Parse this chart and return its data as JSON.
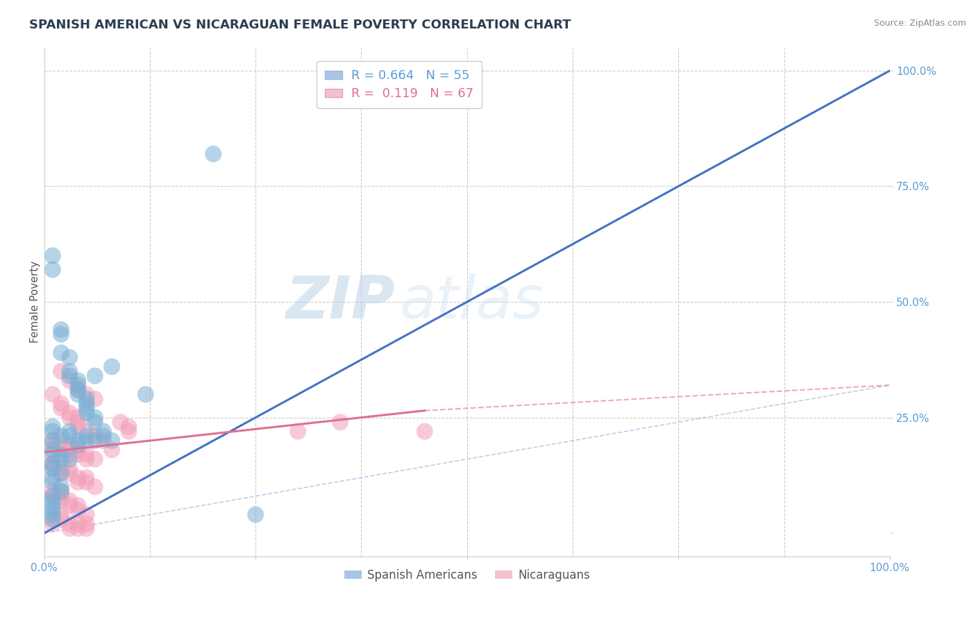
{
  "title": "SPANISH AMERICAN VS NICARAGUAN FEMALE POVERTY CORRELATION CHART",
  "source": "Source: ZipAtlas.com",
  "xlabel": "",
  "ylabel": "Female Poverty",
  "xlim": [
    0,
    1
  ],
  "ylim": [
    -0.05,
    1.05
  ],
  "x_ticks": [
    0.0,
    0.25,
    0.5,
    0.75,
    1.0
  ],
  "x_tick_labels": [
    "0.0%",
    "",
    "",
    "",
    "100.0%"
  ],
  "y_ticks": [
    0.0,
    0.25,
    0.5,
    0.75,
    1.0
  ],
  "y_tick_labels": [
    "",
    "25.0%",
    "50.0%",
    "75.0%",
    "100.0%"
  ],
  "legend_entries": [
    {
      "label": "R = 0.664   N = 55",
      "color": "#aac4e8"
    },
    {
      "label": "R =  0.119   N = 67",
      "color": "#f4a8b8"
    }
  ],
  "legend_labels_bottom": [
    "Spanish Americans",
    "Nicaraguans"
  ],
  "blue_scatter": [
    [
      0.01,
      0.6
    ],
    [
      0.01,
      0.57
    ],
    [
      0.02,
      0.44
    ],
    [
      0.02,
      0.43
    ],
    [
      0.02,
      0.39
    ],
    [
      0.03,
      0.38
    ],
    [
      0.03,
      0.35
    ],
    [
      0.03,
      0.34
    ],
    [
      0.04,
      0.33
    ],
    [
      0.04,
      0.32
    ],
    [
      0.04,
      0.31
    ],
    [
      0.04,
      0.3
    ],
    [
      0.05,
      0.29
    ],
    [
      0.05,
      0.28
    ],
    [
      0.05,
      0.27
    ],
    [
      0.05,
      0.26
    ],
    [
      0.06,
      0.25
    ],
    [
      0.06,
      0.24
    ],
    [
      0.01,
      0.23
    ],
    [
      0.01,
      0.22
    ],
    [
      0.02,
      0.21
    ],
    [
      0.01,
      0.2
    ],
    [
      0.03,
      0.22
    ],
    [
      0.03,
      0.21
    ],
    [
      0.04,
      0.2
    ],
    [
      0.04,
      0.19
    ],
    [
      0.05,
      0.2
    ],
    [
      0.05,
      0.21
    ],
    [
      0.06,
      0.2
    ],
    [
      0.07,
      0.22
    ],
    [
      0.07,
      0.21
    ],
    [
      0.08,
      0.2
    ],
    [
      0.01,
      0.18
    ],
    [
      0.01,
      0.17
    ],
    [
      0.02,
      0.16
    ],
    [
      0.02,
      0.17
    ],
    [
      0.03,
      0.16
    ],
    [
      0.01,
      0.15
    ],
    [
      0.01,
      0.14
    ],
    [
      0.02,
      0.13
    ],
    [
      0.01,
      0.12
    ],
    [
      0.01,
      0.11
    ],
    [
      0.02,
      0.1
    ],
    [
      0.02,
      0.09
    ],
    [
      0.2,
      0.82
    ],
    [
      0.01,
      0.08
    ],
    [
      0.01,
      0.07
    ],
    [
      0.01,
      0.06
    ],
    [
      0.01,
      0.05
    ],
    [
      0.01,
      0.04
    ],
    [
      0.25,
      0.04
    ],
    [
      0.01,
      0.03
    ],
    [
      0.06,
      0.34
    ],
    [
      0.08,
      0.36
    ],
    [
      0.12,
      0.3
    ]
  ],
  "pink_scatter": [
    [
      0.01,
      0.3
    ],
    [
      0.02,
      0.28
    ],
    [
      0.02,
      0.27
    ],
    [
      0.03,
      0.26
    ],
    [
      0.03,
      0.25
    ],
    [
      0.04,
      0.24
    ],
    [
      0.04,
      0.25
    ],
    [
      0.04,
      0.23
    ],
    [
      0.05,
      0.22
    ],
    [
      0.06,
      0.21
    ],
    [
      0.01,
      0.2
    ],
    [
      0.01,
      0.19
    ],
    [
      0.02,
      0.18
    ],
    [
      0.02,
      0.2
    ],
    [
      0.03,
      0.19
    ],
    [
      0.03,
      0.18
    ],
    [
      0.03,
      0.17
    ],
    [
      0.04,
      0.18
    ],
    [
      0.04,
      0.17
    ],
    [
      0.05,
      0.16
    ],
    [
      0.05,
      0.17
    ],
    [
      0.06,
      0.16
    ],
    [
      0.01,
      0.15
    ],
    [
      0.01,
      0.14
    ],
    [
      0.01,
      0.15
    ],
    [
      0.02,
      0.14
    ],
    [
      0.02,
      0.13
    ],
    [
      0.03,
      0.14
    ],
    [
      0.03,
      0.13
    ],
    [
      0.04,
      0.12
    ],
    [
      0.04,
      0.11
    ],
    [
      0.05,
      0.12
    ],
    [
      0.05,
      0.11
    ],
    [
      0.06,
      0.1
    ],
    [
      0.01,
      0.09
    ],
    [
      0.01,
      0.08
    ],
    [
      0.02,
      0.09
    ],
    [
      0.02,
      0.08
    ],
    [
      0.02,
      0.07
    ],
    [
      0.03,
      0.06
    ],
    [
      0.03,
      0.07
    ],
    [
      0.04,
      0.06
    ],
    [
      0.04,
      0.05
    ],
    [
      0.05,
      0.04
    ],
    [
      0.09,
      0.24
    ],
    [
      0.1,
      0.23
    ],
    [
      0.1,
      0.22
    ],
    [
      0.01,
      0.03
    ],
    [
      0.01,
      0.02
    ],
    [
      0.3,
      0.22
    ],
    [
      0.35,
      0.24
    ],
    [
      0.45,
      0.22
    ],
    [
      0.02,
      0.04
    ],
    [
      0.02,
      0.03
    ],
    [
      0.03,
      0.02
    ],
    [
      0.03,
      0.01
    ],
    [
      0.04,
      0.02
    ],
    [
      0.04,
      0.01
    ],
    [
      0.05,
      0.02
    ],
    [
      0.05,
      0.01
    ],
    [
      0.07,
      0.2
    ],
    [
      0.08,
      0.18
    ],
    [
      0.05,
      0.3
    ],
    [
      0.03,
      0.33
    ],
    [
      0.02,
      0.35
    ],
    [
      0.04,
      0.31
    ],
    [
      0.06,
      0.29
    ]
  ],
  "blue_line_solid": [
    [
      0.0,
      0.0
    ],
    [
      1.0,
      1.0
    ]
  ],
  "pink_line_solid": [
    [
      0.0,
      0.175
    ],
    [
      0.45,
      0.265
    ]
  ],
  "pink_line_dashed": [
    [
      0.45,
      0.265
    ],
    [
      1.0,
      0.32
    ]
  ],
  "blue_line_dashed": [
    [
      0.0,
      0.0
    ],
    [
      1.0,
      0.32
    ]
  ],
  "background_color": "#ffffff",
  "grid_color": "#cccccc",
  "blue_color": "#7bafd4",
  "pink_color": "#f4a0b8",
  "blue_line_color": "#4472c4",
  "pink_line_color": "#e07090",
  "watermark_zip": "ZIP",
  "watermark_atlas": "atlas",
  "title_fontsize": 13,
  "axis_label_fontsize": 11,
  "tick_fontsize": 11
}
